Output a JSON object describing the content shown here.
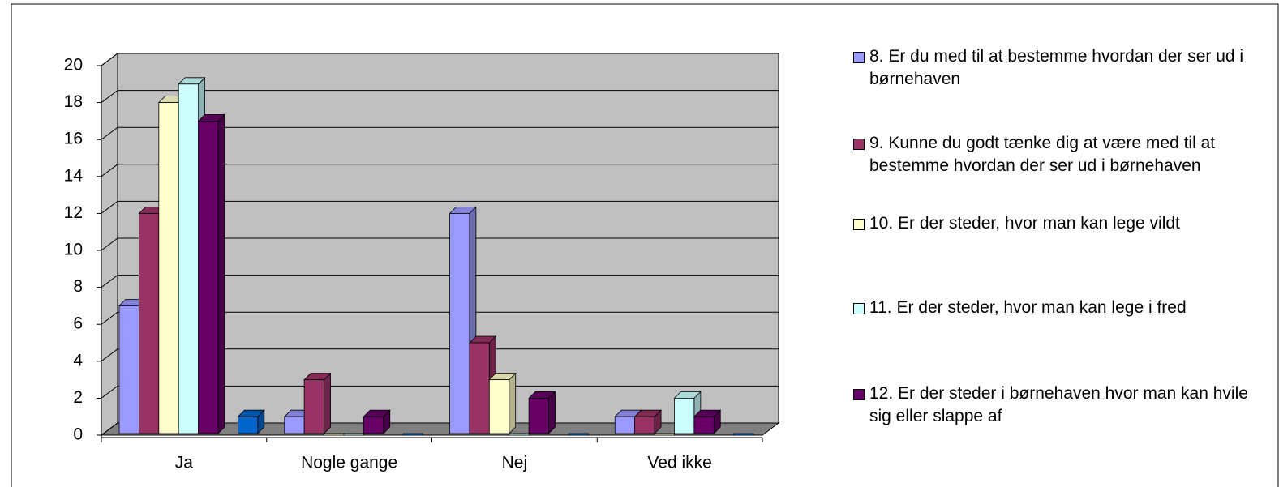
{
  "chart_data": {
    "type": "bar",
    "categories": [
      "Ja",
      "Nogle gange",
      "Nej",
      "Ved ikke"
    ],
    "series": [
      {
        "name": "8. Er du med til at bestemme hvordan der ser ud i børnehaven",
        "color": "#9999ff",
        "values": [
          7,
          1,
          12,
          1
        ]
      },
      {
        "name": "9. Kunne du godt tænke dig at være med til at bestemme hvordan der ser ud i børnehaven",
        "color": "#993366",
        "values": [
          12,
          3,
          5,
          1
        ]
      },
      {
        "name": "10. Er der steder, hvor man kan lege vildt",
        "color": "#ffffcc",
        "values": [
          18,
          0,
          3,
          0
        ]
      },
      {
        "name": "11. Er der steder, hvor man kan lege i fred",
        "color": "#ccffff",
        "values": [
          19,
          0,
          0,
          2
        ]
      },
      {
        "name": "12. Er der steder i børnehaven hvor man kan hvile sig eller slappe af",
        "color": "#660066",
        "values": [
          17,
          1,
          2,
          1
        ]
      },
      {
        "color": "#0066cc",
        "values": [
          1,
          0,
          0,
          0
        ]
      }
    ],
    "ylim": [
      0,
      20
    ],
    "yticks": [
      0,
      2,
      4,
      6,
      8,
      10,
      12,
      14,
      16,
      18,
      20
    ],
    "grid": true
  }
}
